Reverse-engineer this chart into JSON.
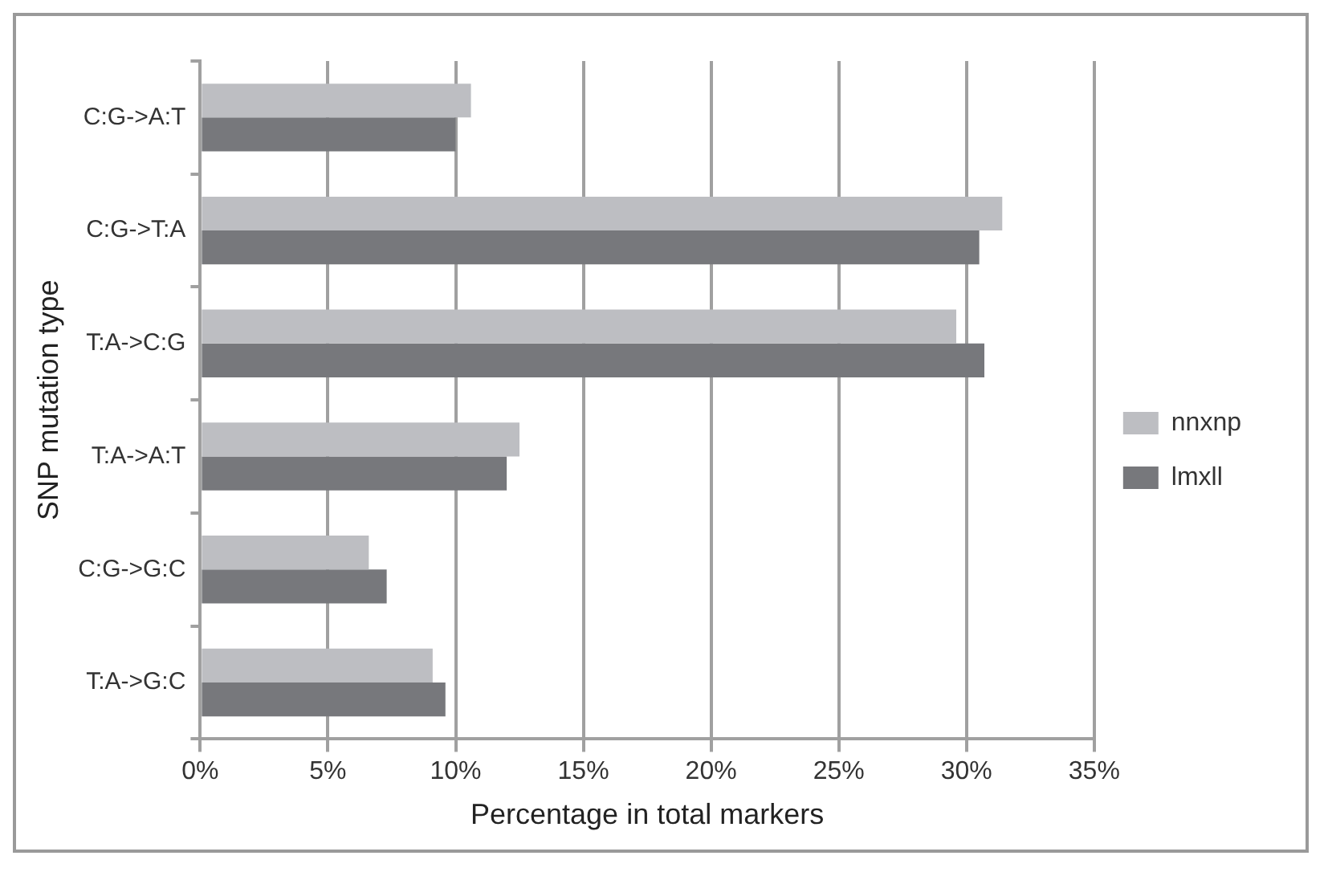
{
  "chart_data": {
    "type": "bar",
    "orientation": "horizontal",
    "xlabel": "Percentage in total markers",
    "ylabel": "SNP mutation type",
    "categories": [
      "C:G->A:T",
      "C:G->T:A",
      "T:A->C:G",
      "T:A->A:T",
      "C:G->G:C",
      "T:A->G:C"
    ],
    "series": [
      {
        "name": "nnxnp",
        "color": "#bdbec2",
        "values": [
          10.6,
          31.4,
          29.6,
          12.5,
          6.6,
          9.1
        ]
      },
      {
        "name": "lmxll",
        "color": "#77787c",
        "values": [
          10.0,
          30.5,
          30.7,
          12.0,
          7.3,
          9.6
        ]
      }
    ],
    "xlim": [
      0,
      35
    ],
    "xticks": [
      {
        "value": 0,
        "label": "0%"
      },
      {
        "value": 5,
        "label": "5%"
      },
      {
        "value": 10,
        "label": "10%"
      },
      {
        "value": 15,
        "label": "15%"
      },
      {
        "value": 20,
        "label": "20%"
      },
      {
        "value": 25,
        "label": "25%"
      },
      {
        "value": 30,
        "label": "30%"
      },
      {
        "value": 35,
        "label": "35%"
      }
    ],
    "grid": "x",
    "legend": "right"
  }
}
